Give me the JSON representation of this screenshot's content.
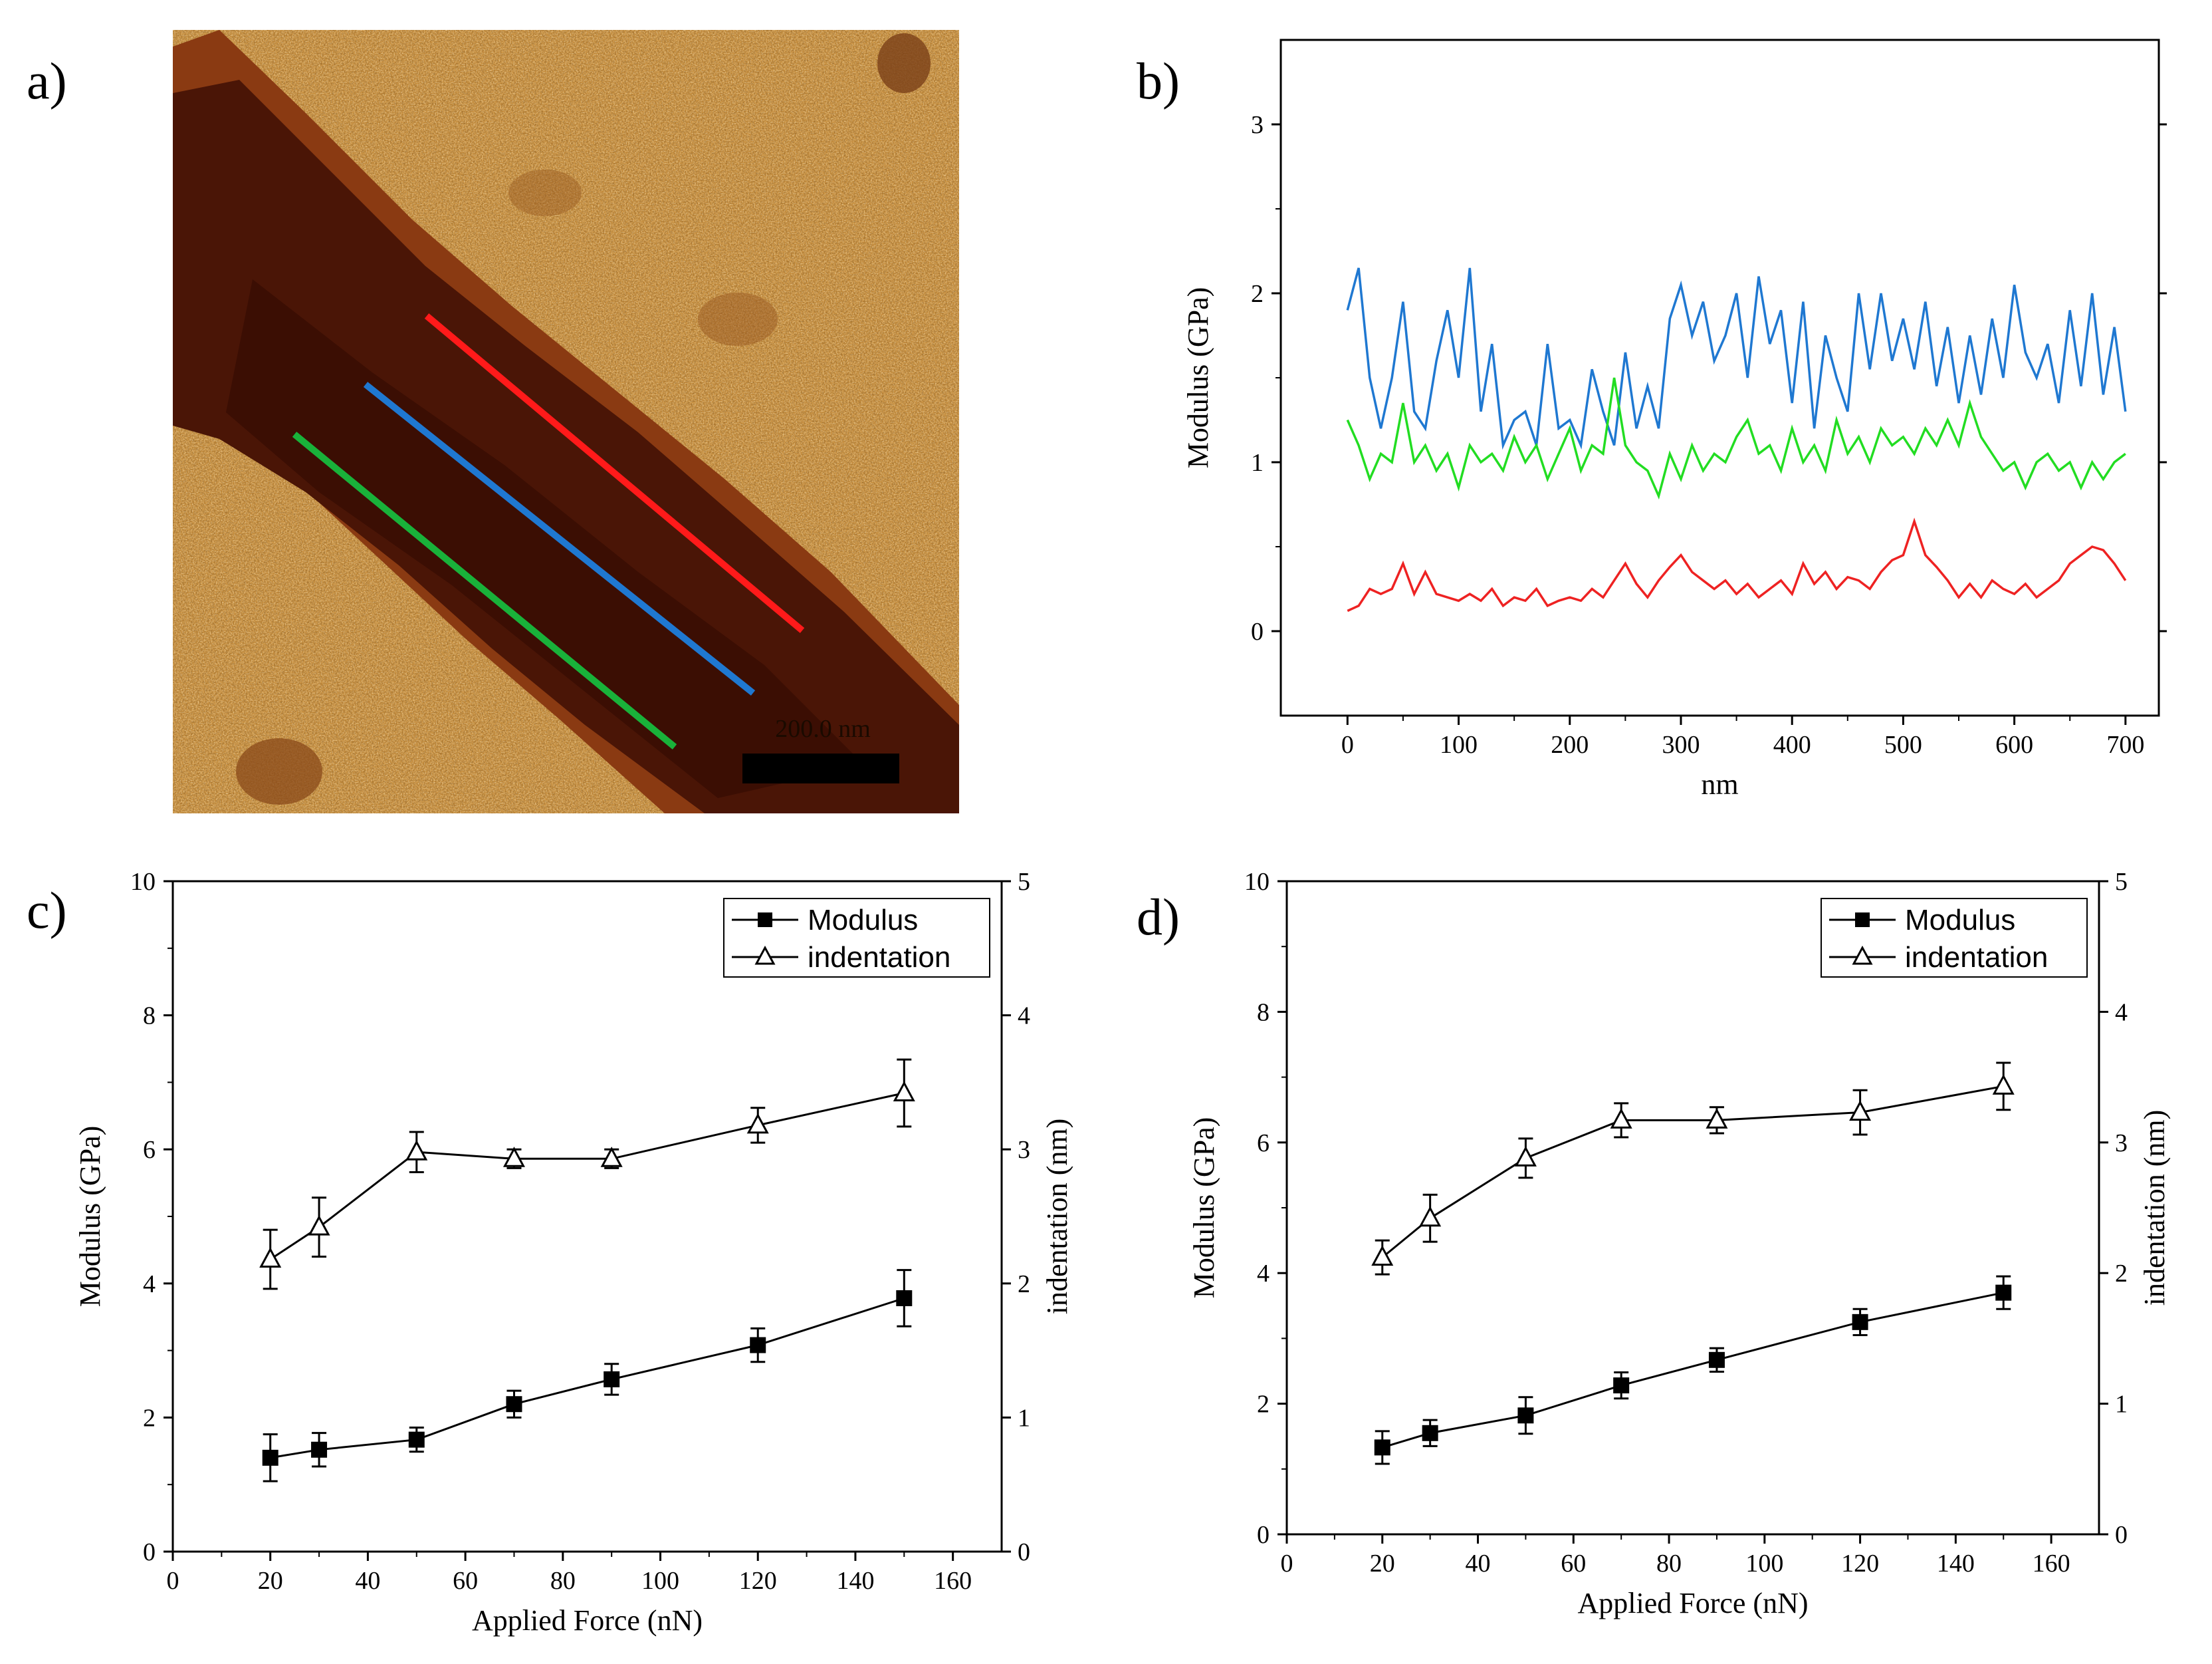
{
  "panel_labels": [
    "a)",
    "b)",
    "c)",
    "d)"
  ],
  "image_a": {
    "scale_bar_label": "200.0 nm",
    "colors": {
      "background": "#c89040",
      "fiber_dark": "#4a1506",
      "fiber_edge": "#8a3a12",
      "scale_bar": "#000000"
    },
    "profile_lines": [
      {
        "color": "#ff1a1a",
        "id": "red"
      },
      {
        "color": "#1f78d1",
        "id": "blue"
      },
      {
        "color": "#19b23a",
        "id": "green"
      }
    ]
  },
  "chart_data": [
    {
      "panel": "b)",
      "type": "line",
      "xlabel": "nm",
      "ylabel": "Modulus (GPa)",
      "xlim": [
        -60,
        730
      ],
      "ylim": [
        -0.5,
        3.5
      ],
      "xticks": [
        0,
        100,
        200,
        300,
        400,
        500,
        600,
        700
      ],
      "yticks": [
        0,
        1,
        2,
        3
      ],
      "series": [
        {
          "color": "#1f78d1",
          "x": [
            0,
            10,
            20,
            30,
            40,
            50,
            60,
            70,
            80,
            90,
            100,
            110,
            120,
            130,
            140,
            150,
            160,
            170,
            180,
            190,
            200,
            210,
            220,
            230,
            240,
            250,
            260,
            270,
            280,
            290,
            300,
            310,
            320,
            330,
            340,
            350,
            360,
            370,
            380,
            390,
            400,
            410,
            420,
            430,
            440,
            450,
            460,
            470,
            480,
            490,
            500,
            510,
            520,
            530,
            540,
            550,
            560,
            570,
            580,
            590,
            600,
            610,
            620,
            630,
            640,
            650,
            660,
            670,
            680,
            690,
            700
          ],
          "y": [
            1.9,
            2.15,
            1.5,
            1.2,
            1.5,
            1.95,
            1.3,
            1.2,
            1.6,
            1.9,
            1.5,
            2.15,
            1.3,
            1.7,
            1.1,
            1.25,
            1.3,
            1.1,
            1.7,
            1.2,
            1.25,
            1.1,
            1.55,
            1.3,
            1.1,
            1.65,
            1.2,
            1.45,
            1.2,
            1.85,
            2.05,
            1.75,
            1.95,
            1.6,
            1.75,
            2.0,
            1.5,
            2.1,
            1.7,
            1.9,
            1.35,
            1.95,
            1.2,
            1.75,
            1.5,
            1.3,
            2.0,
            1.55,
            2.0,
            1.6,
            1.85,
            1.55,
            1.95,
            1.45,
            1.8,
            1.35,
            1.75,
            1.4,
            1.85,
            1.5,
            2.05,
            1.65,
            1.5,
            1.7,
            1.35,
            1.9,
            1.45,
            2.0,
            1.4,
            1.8,
            1.3
          ]
        },
        {
          "color": "#22dd22",
          "x": [
            0,
            10,
            20,
            30,
            40,
            50,
            60,
            70,
            80,
            90,
            100,
            110,
            120,
            130,
            140,
            150,
            160,
            170,
            180,
            190,
            200,
            210,
            220,
            230,
            240,
            250,
            260,
            270,
            280,
            290,
            300,
            310,
            320,
            330,
            340,
            350,
            360,
            370,
            380,
            390,
            400,
            410,
            420,
            430,
            440,
            450,
            460,
            470,
            480,
            490,
            500,
            510,
            520,
            530,
            540,
            550,
            560,
            570,
            580,
            590,
            600,
            610,
            620,
            630,
            640,
            650,
            660,
            670,
            680,
            690,
            700
          ],
          "y": [
            1.25,
            1.1,
            0.9,
            1.05,
            1.0,
            1.35,
            1.0,
            1.1,
            0.95,
            1.05,
            0.85,
            1.1,
            1.0,
            1.05,
            0.95,
            1.15,
            1.0,
            1.1,
            0.9,
            1.05,
            1.2,
            0.95,
            1.1,
            1.05,
            1.5,
            1.1,
            1.0,
            0.95,
            0.8,
            1.05,
            0.9,
            1.1,
            0.95,
            1.05,
            1.0,
            1.15,
            1.25,
            1.05,
            1.1,
            0.95,
            1.2,
            1.0,
            1.1,
            0.95,
            1.25,
            1.05,
            1.15,
            1.0,
            1.2,
            1.1,
            1.15,
            1.05,
            1.2,
            1.1,
            1.25,
            1.1,
            1.35,
            1.15,
            1.05,
            0.95,
            1.0,
            0.85,
            1.0,
            1.05,
            0.95,
            1.0,
            0.85,
            1.0,
            0.9,
            1.0,
            1.05
          ]
        },
        {
          "color": "#ee2222",
          "x": [
            0,
            10,
            20,
            30,
            40,
            50,
            60,
            70,
            80,
            90,
            100,
            110,
            120,
            130,
            140,
            150,
            160,
            170,
            180,
            190,
            200,
            210,
            220,
            230,
            240,
            250,
            260,
            270,
            280,
            290,
            300,
            310,
            320,
            330,
            340,
            350,
            360,
            370,
            380,
            390,
            400,
            410,
            420,
            430,
            440,
            450,
            460,
            470,
            480,
            490,
            500,
            510,
            520,
            530,
            540,
            550,
            560,
            570,
            580,
            590,
            600,
            610,
            620,
            630,
            640,
            650,
            660,
            670,
            680,
            690,
            700
          ],
          "y": [
            0.12,
            0.15,
            0.25,
            0.22,
            0.25,
            0.4,
            0.22,
            0.35,
            0.22,
            0.2,
            0.18,
            0.22,
            0.18,
            0.25,
            0.15,
            0.2,
            0.18,
            0.25,
            0.15,
            0.18,
            0.2,
            0.18,
            0.25,
            0.2,
            0.3,
            0.4,
            0.28,
            0.2,
            0.3,
            0.38,
            0.45,
            0.35,
            0.3,
            0.25,
            0.3,
            0.22,
            0.28,
            0.2,
            0.25,
            0.3,
            0.22,
            0.4,
            0.28,
            0.35,
            0.25,
            0.32,
            0.3,
            0.25,
            0.35,
            0.42,
            0.45,
            0.65,
            0.45,
            0.38,
            0.3,
            0.2,
            0.28,
            0.2,
            0.3,
            0.25,
            0.22,
            0.28,
            0.2,
            0.25,
            0.3,
            0.4,
            0.45,
            0.5,
            0.48,
            0.4,
            0.3
          ]
        }
      ]
    },
    {
      "panel": "c)",
      "type": "line",
      "xlabel": "Applied Force (nN)",
      "ylabel": "Modulus (GPa)",
      "y2label": "indentation (nm)",
      "xlim": [
        0,
        170
      ],
      "ylim": [
        0,
        10
      ],
      "y2lim": [
        0,
        5
      ],
      "xticks": [
        0,
        20,
        40,
        60,
        80,
        100,
        120,
        140,
        160
      ],
      "yticks": [
        0,
        2,
        4,
        6,
        8,
        10
      ],
      "y2ticks": [
        0,
        1,
        2,
        3,
        4,
        5
      ],
      "legend": "top-right",
      "series": [
        {
          "name": "Modulus",
          "axis": "left",
          "marker": "filled-square",
          "x": [
            20,
            30,
            50,
            70,
            90,
            120,
            150
          ],
          "y": [
            1.4,
            1.52,
            1.67,
            2.2,
            2.57,
            3.08,
            3.78
          ],
          "err": [
            0.35,
            0.25,
            0.18,
            0.2,
            0.23,
            0.25,
            0.42
          ]
        },
        {
          "name": "indentation",
          "axis": "right",
          "marker": "open-triangle",
          "x": [
            20,
            30,
            50,
            70,
            90,
            120,
            150
          ],
          "y": [
            2.18,
            2.42,
            2.98,
            2.93,
            2.93,
            3.18,
            3.42
          ],
          "err": [
            0.22,
            0.22,
            0.15,
            0.07,
            0.07,
            0.13,
            0.25
          ]
        }
      ]
    },
    {
      "panel": "d)",
      "type": "line",
      "xlabel": "Applied Force (nN)",
      "ylabel": "Modulus (GPa)",
      "y2label": "indentation (nm)",
      "xlim": [
        0,
        170
      ],
      "ylim": [
        0,
        10
      ],
      "y2lim": [
        0,
        5
      ],
      "xticks": [
        0,
        20,
        40,
        60,
        80,
        100,
        120,
        140,
        160
      ],
      "yticks": [
        0,
        2,
        4,
        6,
        8,
        10
      ],
      "y2ticks": [
        0,
        1,
        2,
        3,
        4,
        5
      ],
      "legend": "top-right",
      "series": [
        {
          "name": "Modulus",
          "axis": "left",
          "marker": "filled-square",
          "x": [
            20,
            30,
            50,
            70,
            90,
            120,
            150
          ],
          "y": [
            1.33,
            1.55,
            1.82,
            2.28,
            2.67,
            3.25,
            3.7
          ],
          "err": [
            0.25,
            0.2,
            0.28,
            0.2,
            0.18,
            0.2,
            0.25
          ]
        },
        {
          "name": "indentation",
          "axis": "right",
          "marker": "open-triangle",
          "x": [
            20,
            30,
            50,
            70,
            90,
            120,
            150
          ],
          "y": [
            2.12,
            2.42,
            2.88,
            3.17,
            3.17,
            3.23,
            3.43
          ],
          "err": [
            0.13,
            0.18,
            0.15,
            0.13,
            0.1,
            0.17,
            0.18
          ]
        }
      ]
    }
  ]
}
